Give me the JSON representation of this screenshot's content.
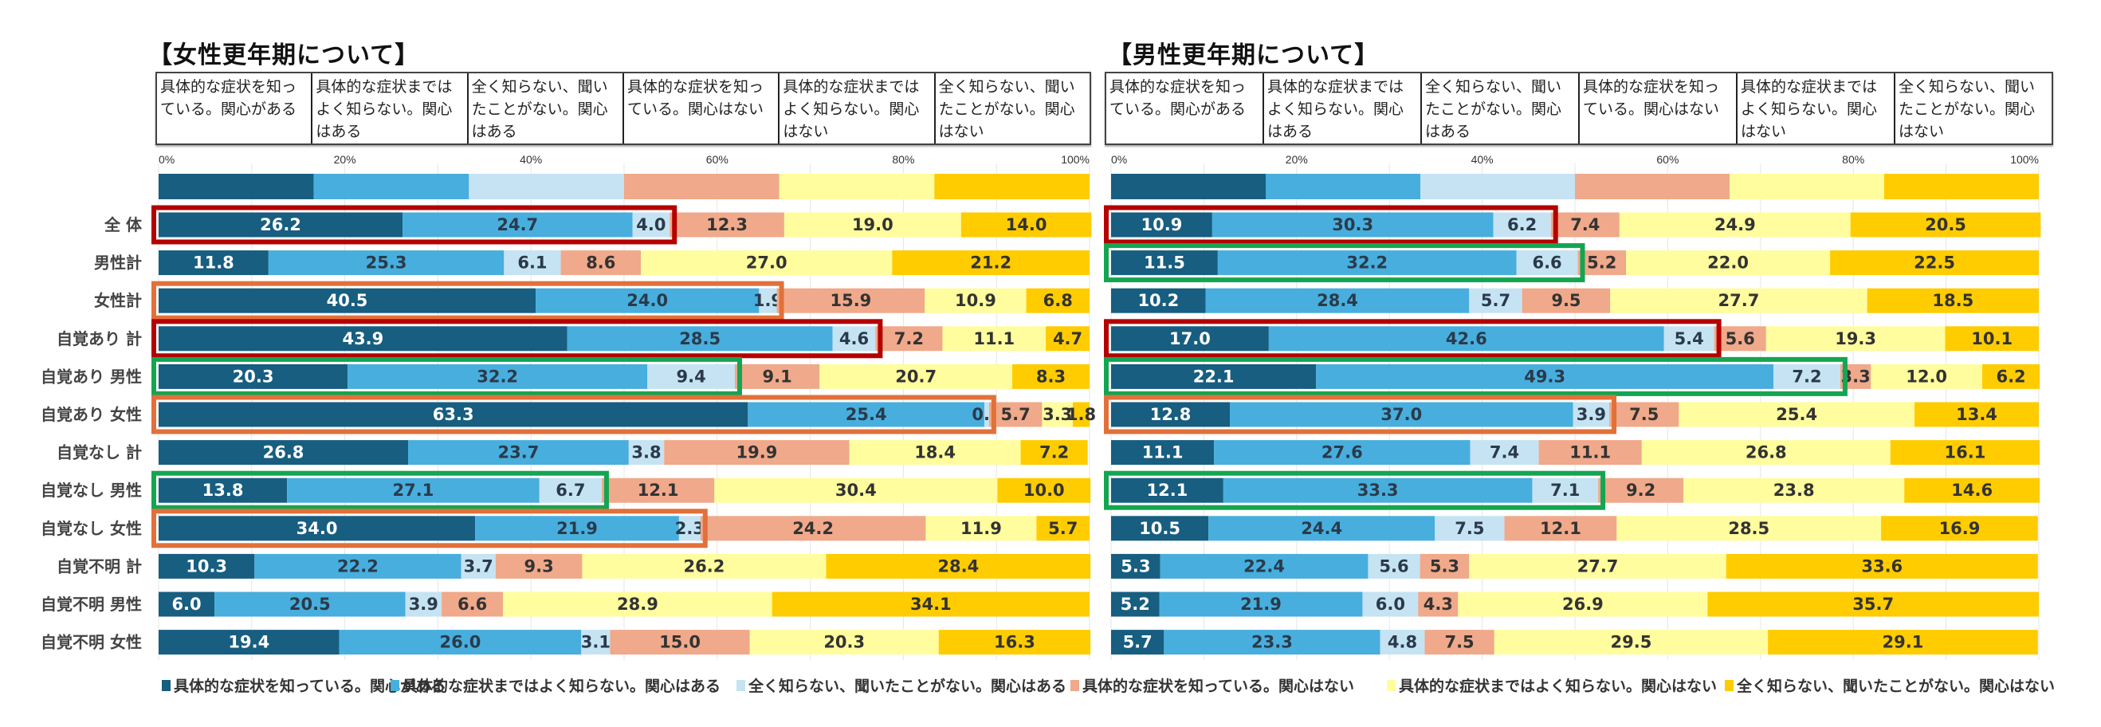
{
  "chart_data": [
    {
      "type": "bar",
      "orientation": "horizontal",
      "stacked": true,
      "title": "【女性更年期について】",
      "xlim": [
        0,
        100
      ],
      "xticks": [
        "0%",
        "20%",
        "40%",
        "60%",
        "80%",
        "100%"
      ],
      "grid": true,
      "categories": [
        "全 体",
        "男性計",
        "女性計",
        "自覚あり 計",
        "自覚あり 男性",
        "自覚あり 女性",
        "自覚なし 計",
        "自覚なし 男性",
        "自覚なし 女性",
        "自覚不明 計",
        "自覚不明 男性",
        "自覚不明 女性"
      ],
      "series": [
        {
          "name": "具体的な症状を知っている。関心がある",
          "values": [
            26.2,
            11.8,
            40.5,
            43.9,
            20.3,
            63.3,
            26.8,
            13.8,
            34.0,
            10.3,
            6.0,
            19.4
          ]
        },
        {
          "name": "具体的な症状まではよく知らない。関心はある",
          "values": [
            24.7,
            25.3,
            24.0,
            28.5,
            32.2,
            25.4,
            23.7,
            27.1,
            21.9,
            22.2,
            20.5,
            26.0
          ]
        },
        {
          "name": "全く知らない、聞いたことがない。関心はある",
          "values": [
            4.0,
            6.1,
            1.9,
            4.6,
            9.4,
            0.5,
            3.8,
            6.7,
            2.3,
            3.7,
            3.9,
            3.1
          ]
        },
        {
          "name": "具体的な症状を知っている。関心はない",
          "values": [
            12.3,
            8.6,
            15.9,
            7.2,
            9.1,
            5.7,
            19.9,
            12.1,
            24.2,
            9.3,
            6.6,
            15.0
          ]
        },
        {
          "name": "具体的な症状まではよく知らない。関心はない",
          "values": [
            19.0,
            27.0,
            10.9,
            11.1,
            20.7,
            3.3,
            18.4,
            30.4,
            11.9,
            26.2,
            28.9,
            20.3
          ]
        },
        {
          "name": "全く知らない、聞いたことがない。関心はない",
          "values": [
            14.0,
            21.2,
            6.8,
            4.7,
            8.3,
            1.8,
            7.2,
            10.0,
            5.7,
            28.4,
            34.1,
            16.3
          ]
        }
      ],
      "highlights": [
        {
          "row": 0,
          "color": "red"
        },
        {
          "row": 2,
          "color": "orange"
        },
        {
          "row": 3,
          "color": "red"
        },
        {
          "row": 4,
          "color": "green"
        },
        {
          "row": 5,
          "color": "orange"
        },
        {
          "row": 7,
          "color": "green"
        },
        {
          "row": 8,
          "color": "orange"
        }
      ]
    },
    {
      "type": "bar",
      "orientation": "horizontal",
      "stacked": true,
      "title": "【男性更年期について】",
      "xlim": [
        0,
        100
      ],
      "xticks": [
        "0%",
        "20%",
        "40%",
        "60%",
        "80%",
        "100%"
      ],
      "grid": true,
      "categories": [
        "全 体",
        "男性計",
        "女性計",
        "自覚あり 計",
        "自覚あり 男性",
        "自覚あり 女性",
        "自覚なし 計",
        "自覚なし 男性",
        "自覚なし 女性",
        "自覚不明 計",
        "自覚不明 男性",
        "自覚不明 女性"
      ],
      "series": [
        {
          "name": "具体的な症状を知っている。関心がある",
          "values": [
            10.9,
            11.5,
            10.2,
            17.0,
            22.1,
            12.8,
            11.1,
            12.1,
            10.5,
            5.3,
            5.2,
            5.7
          ]
        },
        {
          "name": "具体的な症状まではよく知らない。関心はある",
          "values": [
            30.3,
            32.2,
            28.4,
            42.6,
            49.3,
            37.0,
            27.6,
            33.3,
            24.4,
            22.4,
            21.9,
            23.3
          ]
        },
        {
          "name": "全く知らない、聞いたことがない。関心はある",
          "values": [
            6.2,
            6.6,
            5.7,
            5.4,
            7.2,
            3.9,
            7.4,
            7.1,
            7.5,
            5.6,
            6.0,
            4.8
          ]
        },
        {
          "name": "具体的な症状を知っている。関心はない",
          "values": [
            7.4,
            5.2,
            9.5,
            5.6,
            3.3,
            7.5,
            11.1,
            9.2,
            12.1,
            5.3,
            4.3,
            7.5
          ]
        },
        {
          "name": "具体的な症状まではよく知らない。関心はない",
          "values": [
            24.9,
            22.0,
            27.7,
            19.3,
            12.0,
            25.4,
            26.8,
            23.8,
            28.5,
            27.7,
            26.9,
            29.5
          ]
        },
        {
          "name": "全く知らない、聞いたことがない。関心はない",
          "values": [
            20.5,
            22.5,
            18.5,
            10.1,
            6.2,
            13.4,
            16.1,
            14.6,
            16.9,
            33.6,
            35.7,
            29.1
          ]
        }
      ],
      "highlights": [
        {
          "row": 0,
          "color": "red"
        },
        {
          "row": 1,
          "color": "green"
        },
        {
          "row": 3,
          "color": "red"
        },
        {
          "row": 4,
          "color": "green"
        },
        {
          "row": 5,
          "color": "orange"
        },
        {
          "row": 7,
          "color": "green"
        }
      ]
    }
  ],
  "header_columns": [
    "具体的な症状を知っている。関心がある",
    "具体的な症状まではよく知らない。関心はある",
    "全く知らない、聞いたことがない。関心はある",
    "具体的な症状を知っている。関心はない",
    "具体的な症状まではよく知らない。関心はない",
    "全く知らない、聞いたことがない。関心はない"
  ],
  "legend": [
    "具体的な症状を知っている。関心がある",
    "具体的な症状まではよく知らない。関心はある",
    "全く知らない、聞いたことがない。関心はある",
    "具体的な症状を知っている。関心はない",
    "具体的な症状まではよく知らない。関心はない",
    "全く知らない、聞いたことがない。関心はない"
  ],
  "colors": {
    "series": [
      "#175E80",
      "#48AEDD",
      "#C5E3F3",
      "#F0A98A",
      "#FFFD9E",
      "#FFCC00"
    ],
    "label_text": [
      "#ffffff",
      "#2a3a4a",
      "#2a3a4a",
      "#333333",
      "#333333",
      "#333333"
    ],
    "highlight": {
      "red": "#B40000",
      "orange": "#E2703A",
      "green": "#14A552"
    }
  }
}
